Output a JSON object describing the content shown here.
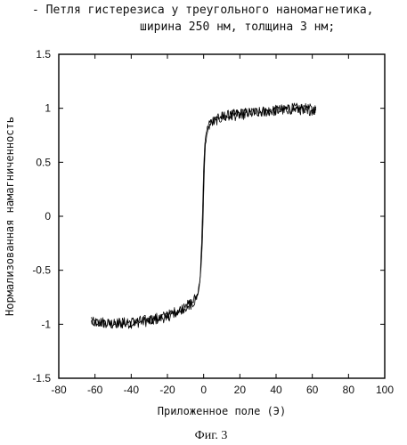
{
  "header": {
    "line1": "- Петля гистерезиса у треугольного наномагнетика,",
    "line2": "ширина 250 нм, толщина 3 нм;"
  },
  "figure_label": "Фиг. 3",
  "chart_data": {
    "type": "line",
    "title": "",
    "xlabel": "Приложенное поле (Э)",
    "ylabel": "Нормализованная намагниченность",
    "xlim": [
      -80,
      100
    ],
    "ylim": [
      -1.5,
      1.5
    ],
    "xticks": [
      -80,
      -60,
      -40,
      -20,
      0,
      20,
      40,
      60,
      80,
      100
    ],
    "yticks": [
      -1.5,
      -1,
      -0.5,
      0,
      0.5,
      1,
      1.5
    ],
    "grid": false,
    "noise_amplitude": 0.05,
    "series": [
      {
        "x": [
          -62,
          -50,
          -40,
          -30,
          -20,
          -15,
          -10,
          -6,
          -4,
          -2,
          -1,
          -0.5,
          0,
          0.5,
          1,
          2,
          3,
          5,
          8,
          12,
          20,
          30,
          40,
          50,
          62
        ],
        "y": [
          -0.98,
          -1.0,
          -0.99,
          -0.97,
          -0.93,
          -0.89,
          -0.85,
          -0.8,
          -0.76,
          -0.6,
          -0.2,
          0.1,
          0.45,
          0.62,
          0.73,
          0.82,
          0.86,
          0.89,
          0.91,
          0.93,
          0.95,
          0.97,
          0.98,
          1.0,
          0.99
        ]
      },
      {
        "x": [
          -62,
          -50,
          -40,
          -30,
          -20,
          -15,
          -10,
          -6,
          -3,
          -1.5,
          -0.5,
          0,
          0.5,
          1,
          2,
          3,
          5,
          8,
          12,
          20,
          30,
          40,
          50,
          62
        ],
        "y": [
          -0.97,
          -0.99,
          -0.98,
          -0.96,
          -0.92,
          -0.88,
          -0.84,
          -0.79,
          -0.72,
          -0.5,
          -0.15,
          0.2,
          0.5,
          0.66,
          0.78,
          0.84,
          0.87,
          0.9,
          0.92,
          0.94,
          0.96,
          0.98,
          0.99,
          0.98
        ]
      }
    ]
  }
}
